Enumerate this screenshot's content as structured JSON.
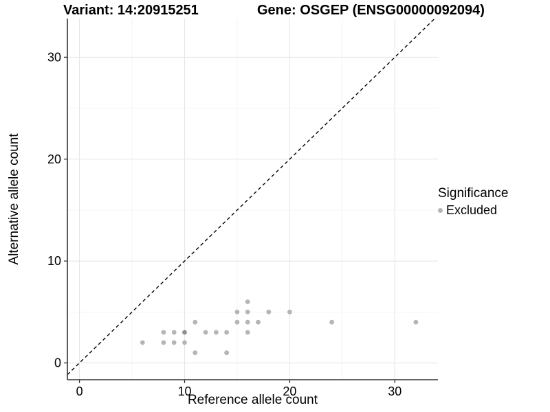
{
  "page": {
    "background": "#ffffff"
  },
  "chart_data": {
    "type": "scatter",
    "title_left": "Variant: 14:20915251",
    "title_right": "Gene: OSGEP (ENSG00000092094)",
    "xlabel": "Reference allele count",
    "ylabel": "Alternative allele count",
    "xlim": [
      -1.15,
      34.1
    ],
    "ylim": [
      -1.65,
      33.8
    ],
    "x_ticks": [
      0,
      10,
      20,
      30
    ],
    "x_minor": [
      5,
      15,
      25
    ],
    "y_ticks": [
      0,
      10,
      20,
      30
    ],
    "y_minor": [
      5,
      15,
      25
    ],
    "grid": true,
    "legend_position": "right",
    "identity_line": {
      "type": "abline",
      "slope": 1,
      "intercept": 0,
      "style": "dashed",
      "color": "#000000"
    },
    "series": [
      {
        "name": "Excluded",
        "color": "#b5b5b5",
        "overlap_color": "#8f8f8f",
        "points": [
          {
            "x": 6,
            "y": 2,
            "n": 1
          },
          {
            "x": 8,
            "y": 2,
            "n": 1
          },
          {
            "x": 9,
            "y": 2,
            "n": 1
          },
          {
            "x": 10,
            "y": 2,
            "n": 1
          },
          {
            "x": 11,
            "y": 1,
            "n": 1
          },
          {
            "x": 14,
            "y": 1,
            "n": 1
          },
          {
            "x": 8,
            "y": 3,
            "n": 1
          },
          {
            "x": 9,
            "y": 3,
            "n": 1
          },
          {
            "x": 10,
            "y": 3,
            "n": 2
          },
          {
            "x": 12,
            "y": 3,
            "n": 1
          },
          {
            "x": 13,
            "y": 3,
            "n": 1
          },
          {
            "x": 14,
            "y": 3,
            "n": 1
          },
          {
            "x": 16,
            "y": 3,
            "n": 1
          },
          {
            "x": 11,
            "y": 4,
            "n": 1
          },
          {
            "x": 15,
            "y": 4,
            "n": 1
          },
          {
            "x": 16,
            "y": 4,
            "n": 1
          },
          {
            "x": 17,
            "y": 4,
            "n": 1
          },
          {
            "x": 24,
            "y": 4,
            "n": 1
          },
          {
            "x": 32,
            "y": 4,
            "n": 1
          },
          {
            "x": 15,
            "y": 5,
            "n": 1
          },
          {
            "x": 16,
            "y": 5,
            "n": 1
          },
          {
            "x": 18,
            "y": 5,
            "n": 1
          },
          {
            "x": 20,
            "y": 5,
            "n": 1
          },
          {
            "x": 16,
            "y": 6,
            "n": 1
          }
        ]
      }
    ],
    "legend": {
      "title": "Significance",
      "items": [
        {
          "label": "Excluded",
          "color": "#b5b5b5"
        }
      ]
    },
    "colors": {
      "grid_major": "#e6e6e6",
      "grid_minor": "#f2f2f2",
      "axis": "#333333",
      "text": "#000000"
    }
  }
}
